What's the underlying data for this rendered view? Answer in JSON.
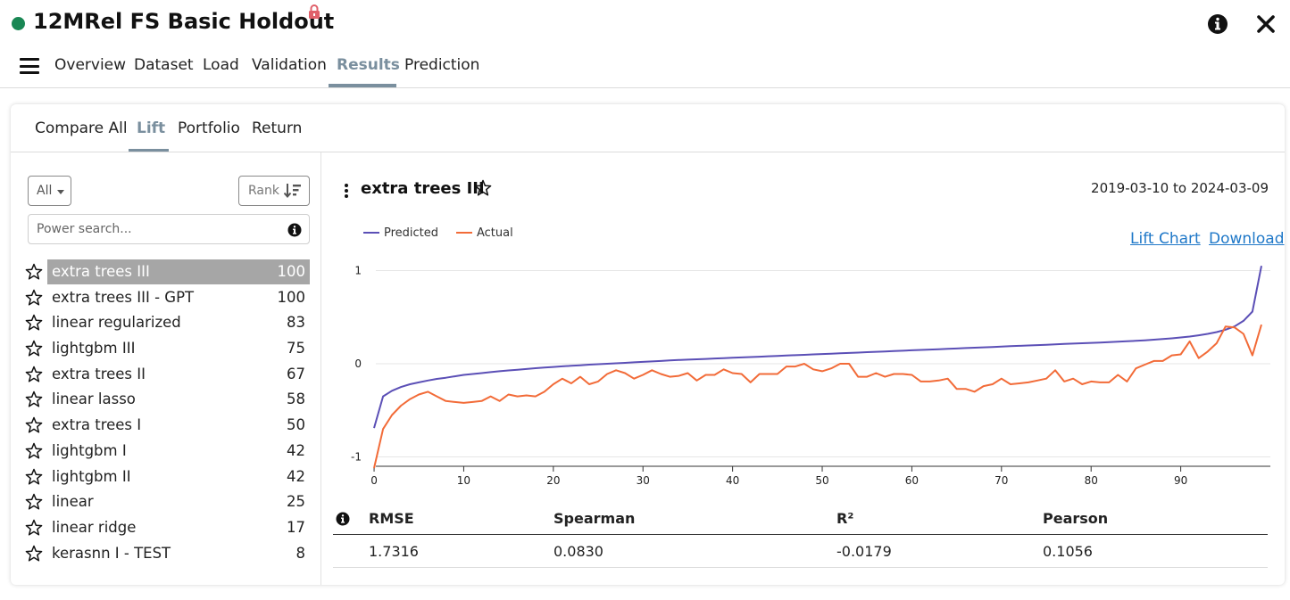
{
  "app": {
    "title": "12MRel FS Basic Holdout",
    "status_color": "#198754",
    "status": "running",
    "locked": true
  },
  "header_icons": [
    "info-icon",
    "close-icon",
    "lock-icon",
    "hamburger-menu-icon"
  ],
  "nav": {
    "tabs": [
      {
        "label": "Overview"
      },
      {
        "label": "Dataset"
      },
      {
        "label": "Load"
      },
      {
        "label": "Validation"
      },
      {
        "label": "Results",
        "active": true
      },
      {
        "label": "Prediction"
      }
    ]
  },
  "subnav": {
    "tabs": [
      {
        "label": "Compare All"
      },
      {
        "label": "Lift",
        "active": true
      },
      {
        "label": "Portfolio"
      },
      {
        "label": "Return"
      }
    ]
  },
  "sidebar": {
    "filter_label": "All",
    "rank_label": "Rank",
    "search_placeholder": "Power search...",
    "models": [
      {
        "name": "extra trees III",
        "score": "100",
        "selected": true
      },
      {
        "name": "extra trees III - GPT",
        "score": "100"
      },
      {
        "name": "linear regularized",
        "score": "83"
      },
      {
        "name": "lightgbm III",
        "score": "75"
      },
      {
        "name": "extra trees II",
        "score": "67"
      },
      {
        "name": "linear lasso",
        "score": "58"
      },
      {
        "name": "extra trees I",
        "score": "50"
      },
      {
        "name": "lightgbm I",
        "score": "42"
      },
      {
        "name": "lightgbm II",
        "score": "42"
      },
      {
        "name": "linear",
        "score": "25"
      },
      {
        "name": "linear ridge",
        "score": "17"
      },
      {
        "name": "kerasnn I - TEST",
        "score": "8"
      }
    ]
  },
  "detail": {
    "model_name": "extra trees III",
    "date_range": "2019-03-10 to 2024-03-09",
    "links": {
      "lift_chart": "Lift Chart",
      "download": "Download"
    }
  },
  "chart_data": {
    "type": "line",
    "title": "",
    "xlabel": "",
    "ylabel": "",
    "x": [
      0,
      1,
      2,
      3,
      4,
      5,
      6,
      7,
      8,
      9,
      10,
      11,
      12,
      13,
      14,
      15,
      16,
      17,
      18,
      19,
      20,
      21,
      22,
      23,
      24,
      25,
      26,
      27,
      28,
      29,
      30,
      31,
      32,
      33,
      34,
      35,
      36,
      37,
      38,
      39,
      40,
      41,
      42,
      43,
      44,
      45,
      46,
      47,
      48,
      49,
      50,
      51,
      52,
      53,
      54,
      55,
      56,
      57,
      58,
      59,
      60,
      61,
      62,
      63,
      64,
      65,
      66,
      67,
      68,
      69,
      70,
      71,
      72,
      73,
      74,
      75,
      76,
      77,
      78,
      79,
      80,
      81,
      82,
      83,
      84,
      85,
      86,
      87,
      88,
      89,
      90,
      91,
      92,
      93,
      94,
      95,
      96,
      97,
      98,
      99
    ],
    "xticks": [
      0,
      10,
      20,
      30,
      40,
      50,
      60,
      70,
      80,
      90
    ],
    "yticks": [
      -1,
      0,
      1
    ],
    "xlim": [
      -1,
      100
    ],
    "ylim": [
      -1.1,
      1.1
    ],
    "grid": true,
    "legend_position": "top-left",
    "series": [
      {
        "name": "Predicted",
        "color": "#5b4fb6",
        "values": [
          -0.69,
          -0.35,
          -0.29,
          -0.25,
          -0.22,
          -0.2,
          -0.18,
          -0.163,
          -0.15,
          -0.135,
          -0.12,
          -0.11,
          -0.1,
          -0.09,
          -0.08,
          -0.072,
          -0.064,
          -0.056,
          -0.048,
          -0.04,
          -0.034,
          -0.028,
          -0.022,
          -0.016,
          -0.01,
          -0.005,
          0.0,
          0.005,
          0.01,
          0.015,
          0.02,
          0.025,
          0.03,
          0.035,
          0.04,
          0.044,
          0.048,
          0.052,
          0.056,
          0.06,
          0.064,
          0.068,
          0.072,
          0.076,
          0.08,
          0.084,
          0.088,
          0.092,
          0.096,
          0.1,
          0.104,
          0.108,
          0.112,
          0.116,
          0.12,
          0.124,
          0.128,
          0.132,
          0.136,
          0.14,
          0.144,
          0.148,
          0.152,
          0.156,
          0.16,
          0.164,
          0.168,
          0.172,
          0.176,
          0.18,
          0.184,
          0.188,
          0.192,
          0.196,
          0.2,
          0.204,
          0.208,
          0.212,
          0.216,
          0.22,
          0.224,
          0.228,
          0.232,
          0.236,
          0.241,
          0.246,
          0.252,
          0.258,
          0.265,
          0.273,
          0.282,
          0.292,
          0.305,
          0.32,
          0.34,
          0.365,
          0.4,
          0.46,
          0.56,
          1.05
        ]
      },
      {
        "name": "Actual",
        "color": "#f26b38",
        "values": [
          -1.12,
          -0.7,
          -0.55,
          -0.45,
          -0.38,
          -0.33,
          -0.3,
          -0.35,
          -0.4,
          -0.41,
          -0.42,
          -0.41,
          -0.4,
          -0.35,
          -0.4,
          -0.33,
          -0.35,
          -0.34,
          -0.35,
          -0.3,
          -0.22,
          -0.16,
          -0.21,
          -0.14,
          -0.22,
          -0.19,
          -0.11,
          -0.07,
          -0.1,
          -0.16,
          -0.12,
          -0.07,
          -0.11,
          -0.14,
          -0.13,
          -0.1,
          -0.18,
          -0.12,
          -0.12,
          -0.06,
          -0.1,
          -0.11,
          -0.2,
          -0.11,
          -0.11,
          -0.11,
          -0.03,
          -0.03,
          0.0,
          -0.06,
          -0.08,
          -0.05,
          0.0,
          0.0,
          -0.14,
          -0.14,
          -0.1,
          -0.14,
          -0.11,
          -0.11,
          -0.12,
          -0.19,
          -0.19,
          -0.18,
          -0.16,
          -0.27,
          -0.27,
          -0.3,
          -0.24,
          -0.22,
          -0.16,
          -0.22,
          -0.21,
          -0.2,
          -0.18,
          -0.16,
          -0.07,
          -0.19,
          -0.16,
          -0.22,
          -0.19,
          -0.2,
          -0.2,
          -0.12,
          -0.19,
          -0.05,
          -0.01,
          0.03,
          0.03,
          0.09,
          0.1,
          0.24,
          0.06,
          0.13,
          0.22,
          0.4,
          0.39,
          0.32,
          0.09,
          0.42
        ]
      }
    ]
  },
  "metrics": {
    "headers": {
      "rmse": "RMSE",
      "spearman": "Spearman",
      "r2": "R²",
      "pearson": "Pearson"
    },
    "values": {
      "rmse": "1.7316",
      "spearman": "0.0830",
      "r2": "-0.0179",
      "pearson": "0.1056"
    }
  }
}
